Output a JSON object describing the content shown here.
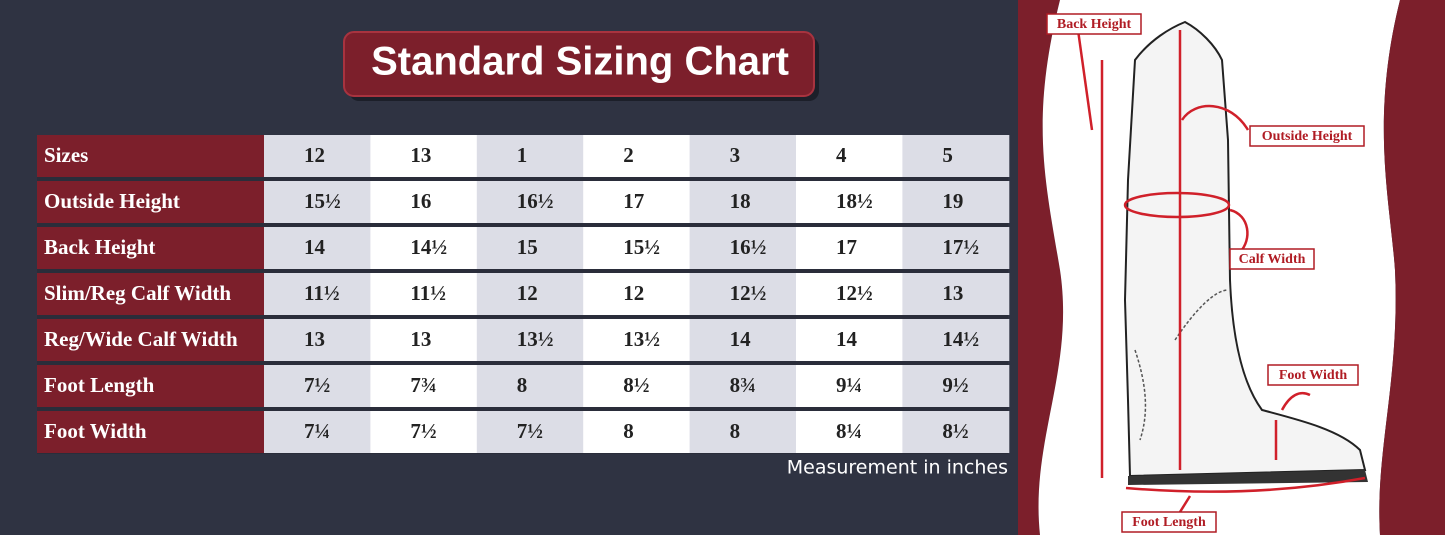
{
  "header": {
    "title": "Standard Sizing Chart"
  },
  "table": {
    "rows": [
      [
        "Sizes",
        "12",
        "13",
        "1",
        "2",
        "3",
        "4",
        "5"
      ],
      [
        "Outside Height",
        "15½",
        "16",
        "16½",
        "17",
        "18",
        "18½",
        "19"
      ],
      [
        "Back Height",
        "14",
        "14½",
        "15",
        "15½",
        "16½",
        "17",
        "17½"
      ],
      [
        "Slim/Reg Calf Width",
        "11½",
        "11½",
        "12",
        "12",
        "12½",
        "12½",
        "13"
      ],
      [
        "Reg/Wide Calf Width",
        "13",
        "13",
        "13½",
        "13½",
        "14",
        "14",
        "14½"
      ],
      [
        "Foot Length",
        "7½",
        "7¾",
        "8",
        "8½",
        "8¾",
        "9¼",
        "9½"
      ],
      [
        "Foot Width",
        "7¼",
        "7½",
        "7½",
        "8",
        "8",
        "8¼",
        "8½"
      ]
    ]
  },
  "note": "Measurement in inches",
  "diagram": {
    "labels": [
      "Back Height",
      "Outside Height",
      "Calf Width",
      "Foot Width",
      "Foot Length"
    ]
  }
}
